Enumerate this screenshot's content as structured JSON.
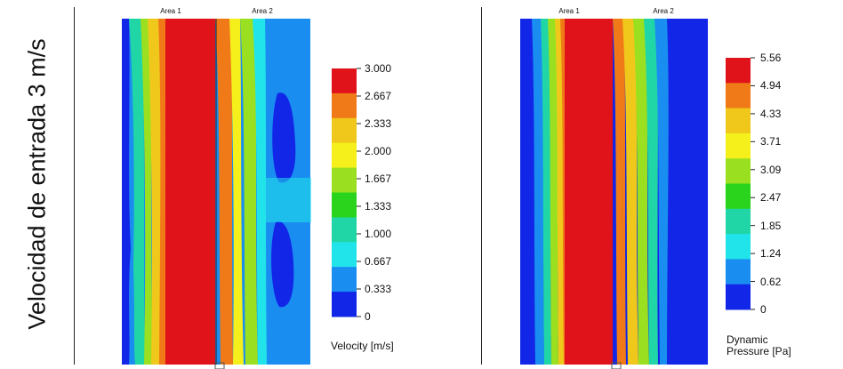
{
  "row_label": "Velocidad de entrada 3 m/s",
  "panels": [
    {
      "area_labels": [
        "Area 1",
        "Area 2"
      ],
      "legend": {
        "title": "Velocity [m/s]",
        "ticks": [
          "3.000",
          "2.667",
          "2.333",
          "2.000",
          "1.667",
          "1.333",
          "1.000",
          "0.667",
          "0.333",
          "0"
        ],
        "colors": [
          "#e0121a",
          "#f07a18",
          "#f0c81c",
          "#f5f01c",
          "#9ae020",
          "#2ad41c",
          "#21d6a6",
          "#21e4ea",
          "#1a8ef0",
          "#1226e8"
        ]
      }
    },
    {
      "area_labels": [
        "Area 1",
        "Area 2"
      ],
      "legend": {
        "title_lines": [
          "Dynamic",
          "Pressure [Pa]"
        ],
        "ticks": [
          "5.56",
          "4.94",
          "4.33",
          "3.71",
          "3.09",
          "2.47",
          "1.85",
          "1.24",
          "0.62",
          "0"
        ],
        "colors": [
          "#e0121a",
          "#f07a18",
          "#f0c81c",
          "#f5f01c",
          "#9ae020",
          "#2ad41c",
          "#21d6a6",
          "#21e4ea",
          "#1a8ef0",
          "#1226e8"
        ]
      }
    }
  ]
}
